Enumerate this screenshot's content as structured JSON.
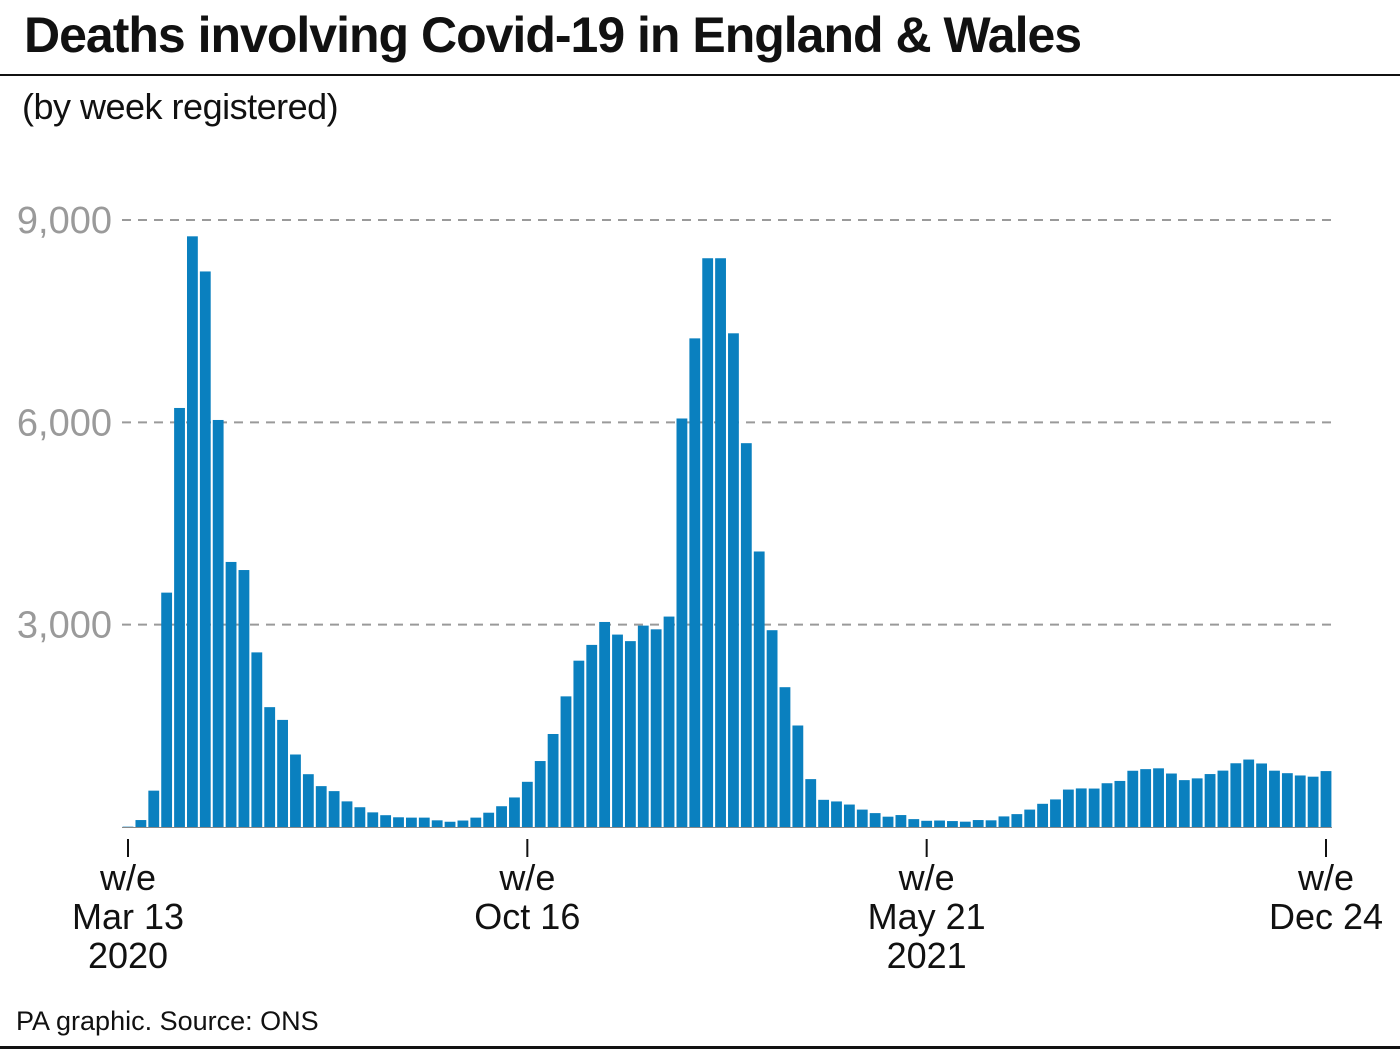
{
  "title": "Deaths involving Covid-19 in England & Wales",
  "subtitle": "(by week registered)",
  "source": "PA graphic. Source: ONS",
  "colors": {
    "bar": "#0a80bf",
    "grid": "#9a9a9a",
    "ytick": "#9a9a9a"
  },
  "chart_data": {
    "type": "bar",
    "title": "Deaths involving Covid-19 in England & Wales",
    "subtitle": "(by week registered)",
    "xlabel": "",
    "ylabel": "",
    "ylim": [
      0,
      9000
    ],
    "yticks": [
      3000,
      6000,
      9000
    ],
    "ytick_labels": [
      "3,000",
      "6,000",
      "9,000"
    ],
    "grid": "horizontal dashed",
    "xticks": [
      {
        "index": 0,
        "lines": [
          "w/e",
          "Mar 13",
          "2020"
        ]
      },
      {
        "index": 31,
        "lines": [
          "w/e",
          "Oct 16"
        ]
      },
      {
        "index": 62,
        "lines": [
          "w/e",
          "May 21",
          "2021"
        ]
      },
      {
        "index": 93,
        "lines": [
          "w/e",
          "Dec 24"
        ]
      }
    ],
    "values": [
      5,
      103,
      539,
      3475,
      6213,
      8758,
      8237,
      6035,
      3930,
      3810,
      2589,
      1777,
      1588,
      1075,
      783,
      606,
      532,
      380,
      293,
      217,
      175,
      144,
      139,
      139,
      99,
      78,
      96,
      139,
      212,
      308,
      438,
      670,
      978,
      1379,
      1937,
      2466,
      2700,
      3040,
      2853,
      2756,
      2986,
      2931,
      3120,
      6057,
      7245,
      8433,
      8433,
      7320,
      5691,
      4085,
      2918,
      2073,
      1505,
      710,
      403,
      379,
      333,
      258,
      206,
      153,
      177,
      117,
      92,
      96,
      88,
      79,
      103,
      99,
      157,
      191,
      258,
      344,
      409,
      555,
      572,
      570,
      649,
      683,
      834,
      858,
      870,
      793,
      695,
      721,
      785,
      836,
      945,
      1000,
      942,
      835,
      798,
      764,
      746,
      829
    ]
  }
}
